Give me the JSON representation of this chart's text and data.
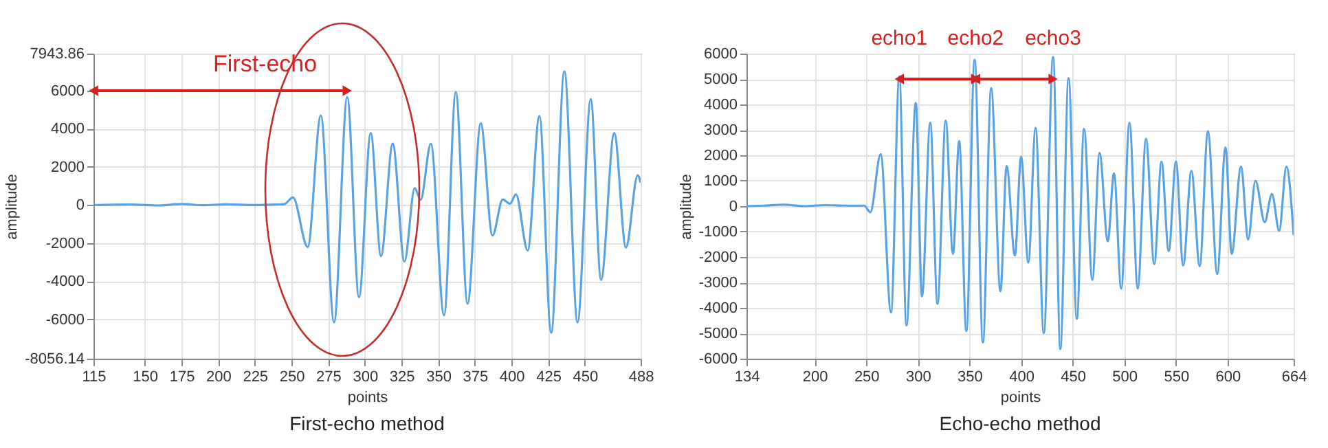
{
  "chart_data": [
    {
      "type": "line",
      "xlabel": "points",
      "ylabel": "amplitude",
      "xlim": [
        115,
        488
      ],
      "ylim": [
        -8056.14,
        7943.86
      ],
      "xticks": [
        115,
        150,
        175,
        200,
        225,
        250,
        275,
        300,
        325,
        350,
        375,
        400,
        425,
        450,
        488
      ],
      "yticks": [
        -8056.14,
        -6000,
        -4000,
        -2000,
        0,
        2000,
        4000,
        6000,
        7943.86
      ],
      "grid": true,
      "color": "#5aa3e2",
      "x": [
        115,
        140,
        160,
        175,
        190,
        205,
        225,
        240,
        245,
        251,
        261,
        270,
        279,
        288,
        296,
        304,
        311,
        319,
        327,
        334,
        338,
        345,
        354,
        362,
        370,
        379,
        387,
        394,
        399,
        403,
        411,
        419,
        427,
        436,
        445,
        454,
        461,
        470,
        478,
        486,
        488
      ],
      "values": [
        0,
        30,
        -20,
        60,
        -10,
        40,
        0,
        30,
        50,
        400,
        -2200,
        4700,
        -6150,
        5670,
        -4840,
        3780,
        -2670,
        3220,
        -2960,
        890,
        270,
        3220,
        -5780,
        5930,
        -5180,
        4290,
        -1600,
        290,
        70,
        560,
        -2380,
        4670,
        -6690,
        7000,
        -6150,
        5560,
        -3930,
        3780,
        -2220,
        1560,
        1180
      ],
      "annotations": [
        {
          "text": "First-echo",
          "x": 288,
          "y": 6000
        },
        "First-echo method"
      ]
    },
    {
      "type": "line",
      "xlabel": "points",
      "ylabel": "amplitude",
      "xlim": [
        134,
        664
      ],
      "ylim": [
        -6000,
        6000
      ],
      "xticks": [
        134,
        200,
        250,
        300,
        350,
        400,
        450,
        500,
        550,
        600,
        664
      ],
      "yticks": [
        -6000,
        -5000,
        -4000,
        -3000,
        -2000,
        -1000,
        0,
        1000,
        2000,
        3000,
        4000,
        5000,
        6000
      ],
      "grid": true,
      "color": "#5aa3e2",
      "x": [
        134,
        150,
        170,
        190,
        210,
        230,
        248,
        254,
        264,
        274,
        282,
        289,
        298,
        304,
        312,
        319,
        327,
        334,
        340,
        347,
        355,
        363,
        371,
        380,
        386,
        394,
        400,
        407,
        414,
        422,
        431,
        438,
        446,
        454,
        461,
        469,
        476,
        484,
        490,
        497,
        505,
        513,
        521,
        529,
        536,
        543,
        550,
        557,
        565,
        573,
        581,
        590,
        598,
        604,
        613,
        620,
        627,
        636,
        643,
        650,
        657,
        664
      ],
      "values": [
        0,
        20,
        60,
        0,
        40,
        20,
        20,
        -240,
        2050,
        -4180,
        5100,
        -4690,
        4060,
        -3550,
        3280,
        -3840,
        3360,
        -1880,
        2560,
        -4910,
        5760,
        -5360,
        4640,
        -3340,
        1580,
        -1940,
        1950,
        -2220,
        3070,
        -4990,
        5870,
        -5620,
        5030,
        -4430,
        3040,
        -2900,
        2090,
        -1380,
        1290,
        -3240,
        3280,
        -3240,
        2650,
        -2280,
        1750,
        -1770,
        1750,
        -2330,
        1380,
        -2360,
        2940,
        -2670,
        2310,
        -1880,
        1550,
        -1310,
        1000,
        -630,
        480,
        -970,
        1550,
        -1140
      ],
      "annotations": [
        {
          "text": "echo1",
          "x": 282,
          "y": 5000
        },
        {
          "text": "echo2",
          "x": 356,
          "y": 5000
        },
        {
          "text": "echo3",
          "x": 431,
          "y": 5000
        },
        "Echo-echo method"
      ]
    }
  ]
}
